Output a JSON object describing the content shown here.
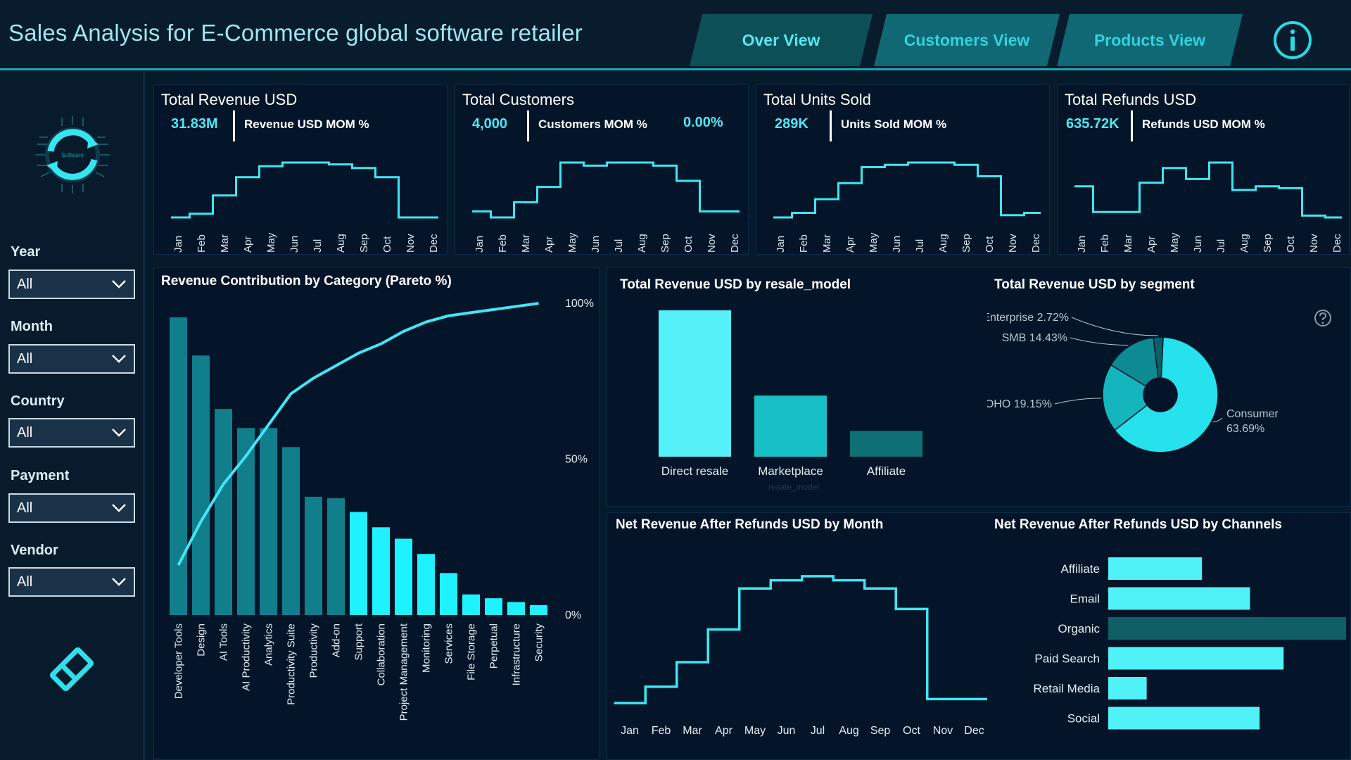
{
  "header": {
    "title": "Sales Analysis for E-Commerce global software retailer",
    "tabs": [
      {
        "label": "Over View"
      },
      {
        "label": "Customers View"
      },
      {
        "label": "Products View"
      }
    ],
    "info_icon": "info-icon"
  },
  "sidebar": {
    "logo_text": "Software",
    "filters": [
      {
        "label": "Year",
        "value": "All"
      },
      {
        "label": "Month",
        "value": "All"
      },
      {
        "label": "Country",
        "value": "All"
      },
      {
        "label": "Payment",
        "value": "All"
      },
      {
        "label": "Vendor",
        "value": "All"
      }
    ],
    "clear_icon": "eraser-icon"
  },
  "months": [
    "Jan",
    "Feb",
    "Mar",
    "Apr",
    "May",
    "Jun",
    "Jul",
    "Aug",
    "Sep",
    "Oct",
    "Nov",
    "Dec"
  ],
  "kpis": [
    {
      "title": "Total Revenue USD",
      "value": "31.83M",
      "mom_label": "Revenue USD MOM %",
      "mom_value": "",
      "spark": [
        1.6,
        1.7,
        2.2,
        2.7,
        3.0,
        3.1,
        3.1,
        3.05,
        2.95,
        2.7,
        1.6,
        1.6
      ]
    },
    {
      "title": "Total Customers",
      "value": "4,000",
      "mom_label": "Customers MOM %",
      "mom_value": "0.00%",
      "spark": [
        4.4,
        4.3,
        4.55,
        4.8,
        5.2,
        5.15,
        5.2,
        5.2,
        5.15,
        4.9,
        4.4,
        4.4
      ]
    },
    {
      "title": "Total Units Sold",
      "value": "289K",
      "mom_label": "Units Sold MOM %",
      "mom_value": "",
      "spark": [
        1.5,
        1.6,
        1.9,
        2.25,
        2.6,
        2.65,
        2.7,
        2.7,
        2.65,
        2.4,
        1.55,
        1.6
      ]
    },
    {
      "title": "Total Refunds USD",
      "value": "635.72K",
      "mom_label": "Refunds USD MOM %",
      "mom_value": "",
      "spark": [
        55,
        41,
        41,
        57,
        65,
        59,
        68,
        53,
        55,
        54,
        39,
        38
      ]
    }
  ],
  "pareto": {
    "title": "Revenue Contribution by Category (Pareto %)",
    "y_ticks": [
      "100%",
      "50%",
      "0%"
    ]
  },
  "resale": {
    "title": "Total Revenue USD by resale_model",
    "axis_label": "resale_model"
  },
  "segment": {
    "title": "Total Revenue USD by segment",
    "help_icon": "help-icon"
  },
  "net_month": {
    "title": "Net Revenue After Refunds USD by Month"
  },
  "channels": {
    "title": "Net Revenue After Refunds USD by Channels"
  },
  "chart_data": [
    {
      "type": "bar",
      "title": "Revenue Contribution by Category (Pareto %)",
      "categories": [
        "Developer Tools",
        "Design",
        "AI Tools",
        "AI Productivity",
        "Analytics",
        "Productivity Suite",
        "Productivity",
        "Add-on",
        "Support",
        "Collaboration",
        "Project Management",
        "Monitoring",
        "Services",
        "File Storage",
        "Perpetual",
        "Infrastructure",
        "Security"
      ],
      "series": [
        {
          "values": [
            3.9,
            3.4,
            2.7,
            2.45,
            2.45,
            2.2,
            1.55,
            1.53,
            1.35,
            1.15,
            1.0,
            0.8,
            0.55,
            0.27,
            0.22,
            0.17,
            0.13
          ]
        },
        {
          "values": [
            16,
            30,
            42,
            51,
            61,
            71,
            76,
            80,
            84,
            87,
            91,
            94,
            96,
            97,
            98,
            99,
            100
          ]
        }
      ],
      "highlight_from_index": 8,
      "ylim_right": [
        0,
        100
      ],
      "colors": {
        "dark": "#117e8c",
        "bright": "#1ff2ff",
        "line": "#43e6f2"
      }
    },
    {
      "type": "bar",
      "title": "Total Revenue USD by resale_model",
      "categories": [
        "Direct resale",
        "Marketplace",
        "Affiliate"
      ],
      "values": [
        17.0,
        7.1,
        3.0
      ],
      "colors": [
        "#55f0f8",
        "#19bfc6",
        "#0e6f74"
      ]
    },
    {
      "type": "pie",
      "title": "Total Revenue USD by segment",
      "categories": [
        "Consumer",
        "SOHO",
        "SMB",
        "Enterprise"
      ],
      "values": [
        63.69,
        19.15,
        14.43,
        2.72
      ],
      "labels": [
        "Consumer 63.69%",
        "SOHO 19.15%",
        "SMB 14.43%",
        "Enterprise 2.72%"
      ],
      "colors": [
        "#26e2ec",
        "#15b5be",
        "#0e8a92",
        "#0a6068"
      ]
    },
    {
      "type": "line",
      "title": "Net Revenue After Refunds USD by Month",
      "categories": [
        "Jan",
        "Feb",
        "Mar",
        "Apr",
        "May",
        "Jun",
        "Jul",
        "Aug",
        "Sep",
        "Oct",
        "Nov",
        "Dec"
      ],
      "values": [
        1.55,
        1.75,
        2.05,
        2.45,
        2.95,
        3.05,
        3.1,
        3.05,
        2.95,
        2.7,
        1.6,
        1.6
      ]
    },
    {
      "type": "bar",
      "title": "Net Revenue After Refunds USD by Channels",
      "categories": [
        "Affiliate",
        "Email",
        "Organic",
        "Paid Search",
        "Retail Media",
        "Social"
      ],
      "values": [
        3.9,
        5.9,
        9.9,
        7.3,
        1.6,
        6.3
      ],
      "colors": [
        "#50f2f8",
        "#50f2f8",
        "#0e5f66",
        "#50f2f8",
        "#50f2f8",
        "#50f2f8"
      ]
    }
  ]
}
